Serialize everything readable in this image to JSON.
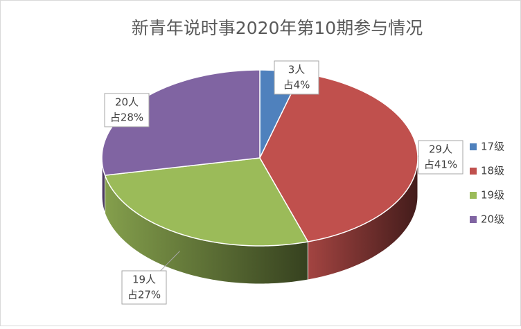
{
  "chart_data": {
    "type": "pie3d",
    "title": "新青年说时事2020年第10期参与情况",
    "categories": [
      "17级",
      "18级",
      "19级",
      "20级"
    ],
    "values": [
      3,
      29,
      19,
      20
    ],
    "value_labels": [
      [
        "3人",
        "占4%"
      ],
      [
        "29人",
        "占41%"
      ],
      [
        "19人",
        "占27%"
      ],
      [
        "20人",
        "占28%"
      ]
    ],
    "colors": [
      "#4f81bd",
      "#c0504d",
      "#9bbb59",
      "#8064a2"
    ],
    "legend": "right"
  }
}
